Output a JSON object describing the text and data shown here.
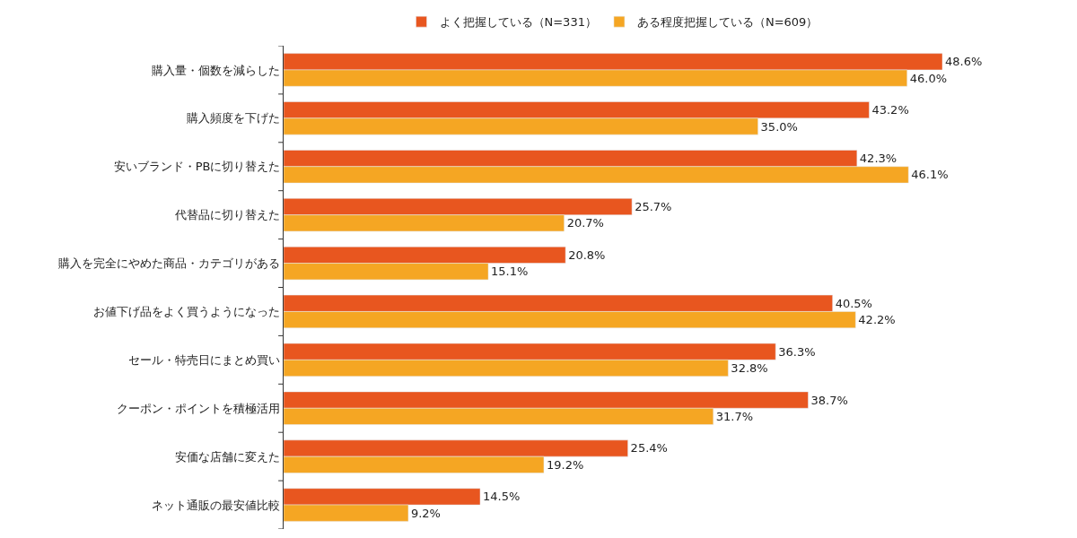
{
  "chart_data": {
    "type": "bar",
    "orientation": "horizontal",
    "legend": "top",
    "categories": [
      "購入量・個数を減らした",
      "購入頻度を下げた",
      "安いブランド・PBに切り替えた",
      "代替品に切り替えた",
      "購入を完全にやめた商品・カテゴリがある",
      "お値下げ品をよく買うようになった",
      "セール・特売日にまとめ買い",
      "クーポン・ポイントを積極活用",
      "安価な店舗に変えた",
      "ネット通販の最安値比較"
    ],
    "series": [
      {
        "name": "よく把握している（N=331）",
        "color": "#e8561f",
        "values": [
          48.6,
          43.2,
          42.3,
          25.7,
          20.8,
          40.5,
          36.3,
          38.7,
          25.4,
          14.5
        ],
        "value_labels": [
          "48.6%",
          "43.2%",
          "42.3%",
          "25.7%",
          "20.8%",
          "40.5%",
          "36.3%",
          "38.7%",
          "25.4%",
          "14.5%"
        ]
      },
      {
        "name": "ある程度把握している（N=609）",
        "color": "#f5a623",
        "values": [
          46.0,
          35.0,
          46.1,
          20.7,
          15.1,
          42.2,
          32.8,
          31.7,
          19.2,
          9.2
        ],
        "value_labels": [
          "46.0%",
          "35.0%",
          "46.1%",
          "20.7%",
          "15.1%",
          "42.2%",
          "32.8%",
          "31.7%",
          "19.2%",
          "9.2%"
        ]
      }
    ],
    "tick_labels": "y"
  }
}
